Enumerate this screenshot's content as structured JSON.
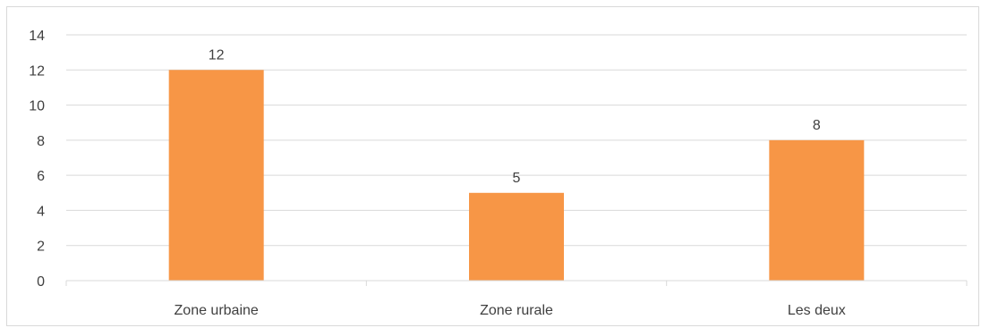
{
  "chart_data": {
    "type": "bar",
    "categories": [
      "Zone urbaine",
      "Zone rurale",
      "Les deux"
    ],
    "values": [
      12,
      5,
      8
    ],
    "data_labels": [
      "12",
      "5",
      "8"
    ],
    "y_ticks": [
      "0",
      "2",
      "4",
      "6",
      "8",
      "10",
      "12",
      "14"
    ],
    "ylim": [
      0,
      14
    ],
    "grid": true,
    "legend": "none",
    "bar_color": "#f79646",
    "gridline_color": "#d9d9d9"
  }
}
